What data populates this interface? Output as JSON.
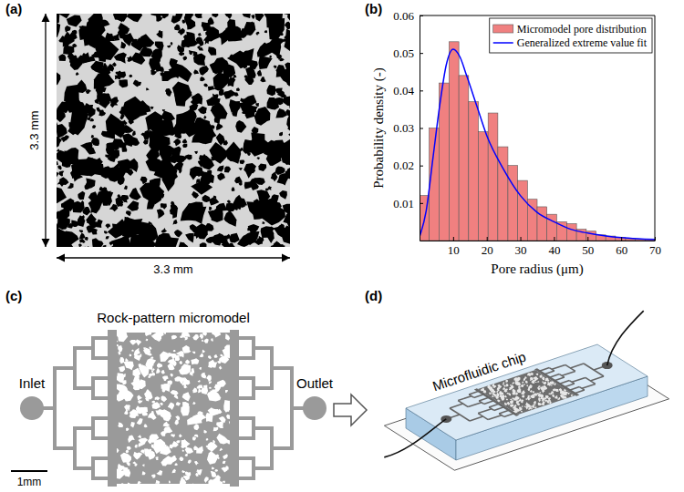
{
  "chart_data": {
    "type": "histogram",
    "xlabel": "Pore radius (μm)",
    "ylabel": "Probability density (-)",
    "bins": [
      0,
      2.9,
      5.8,
      8.8,
      11.7,
      14.6,
      17.5,
      20.4,
      23.3,
      26.3,
      29.2,
      32.1,
      35,
      37.9,
      40.8,
      43.8,
      46.7,
      49.6,
      52.5,
      55.4,
      58.3,
      61.3,
      64.2,
      67.1,
      70
    ],
    "xlim": [
      0,
      70
    ],
    "ylim": [
      0,
      0.06
    ],
    "xticks": [
      10,
      20,
      30,
      40,
      50,
      60,
      70
    ],
    "yticks": [
      0.01,
      0.02,
      0.03,
      0.04,
      0.05,
      0.06
    ],
    "grid": false,
    "legend": "upper right",
    "series": [
      {
        "name": "Micromodel pore distribution",
        "type": "bar",
        "color": "#f08080",
        "values": [
          0.012,
          0.03,
          0.042,
          0.053,
          0.044,
          0.037,
          0.029,
          0.034,
          0.025,
          0.02,
          0.016,
          0.011,
          0.009,
          0.007,
          0.005,
          0.0045,
          0.003,
          0.0025,
          0.0015,
          0.0012,
          0.0008,
          0.0005,
          0.0004,
          0.0003
        ]
      },
      {
        "name": "Generalized extreme value fit",
        "type": "line",
        "color": "#0000ff",
        "x": [
          0,
          2,
          4,
          6,
          8,
          10,
          12,
          14,
          17,
          20,
          25,
          30,
          35,
          40,
          45,
          50,
          55,
          60,
          65,
          70
        ],
        "values": [
          0.001,
          0.008,
          0.022,
          0.036,
          0.047,
          0.051,
          0.049,
          0.044,
          0.036,
          0.028,
          0.019,
          0.012,
          0.0075,
          0.005,
          0.003,
          0.002,
          0.0013,
          0.0008,
          0.0005,
          0.0003
        ]
      }
    ]
  },
  "panels": {
    "a": {
      "label": "(a)",
      "height_label": "3.3 mm",
      "width_label": "3.3 mm"
    },
    "b": {
      "label": "(b)"
    },
    "c": {
      "label": "(c)",
      "title": "Rock-pattern micromodel",
      "inlet": "Inlet",
      "outlet": "Outlet",
      "scale_bar": "1mm"
    },
    "d": {
      "label": "(d)",
      "title": "Microfluidic chip"
    }
  }
}
